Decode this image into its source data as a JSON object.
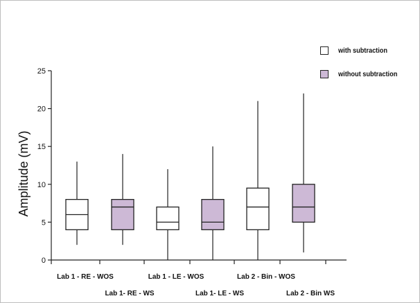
{
  "chart_data": {
    "type": "box",
    "ylabel": "Amplitude (mV)",
    "ylim": [
      0,
      25
    ],
    "yticks": [
      0,
      5,
      10,
      15,
      20,
      25
    ],
    "categories": [
      "Lab 1 - RE - WOS",
      "Lab 1- RE - WS",
      "Lab 1 - LE - WOS",
      "Lab 1- LE - WS",
      "Lab 2 - Bin - WOS",
      "Lab 2 - Bin WS"
    ],
    "series": [
      {
        "name": "with subtraction",
        "color": "#ffffff",
        "boxes": [
          {
            "category": "Lab 1 - RE - WOS",
            "min": 2,
            "q1": 4,
            "median": 6,
            "q3": 8,
            "max": 13
          },
          {
            "category": "Lab 1 - LE - WOS",
            "min": 0,
            "q1": 4,
            "median": 5,
            "q3": 7,
            "max": 12
          },
          {
            "category": "Lab 2 - Bin - WOS",
            "min": 0,
            "q1": 4,
            "median": 7,
            "q3": 9.5,
            "max": 21
          }
        ]
      },
      {
        "name": "without subtraction",
        "color": "#cdb9d6",
        "boxes": [
          {
            "category": "Lab 1- RE - WS",
            "min": 2,
            "q1": 4,
            "median": 7,
            "q3": 8,
            "max": 14
          },
          {
            "category": "Lab 1- LE - WS",
            "min": 0,
            "q1": 4,
            "median": 5,
            "q3": 8,
            "max": 15
          },
          {
            "category": "Lab 2 - Bin WS",
            "min": 1,
            "q1": 5,
            "median": 7,
            "q3": 10,
            "max": 22
          }
        ]
      }
    ],
    "legend": {
      "position": "top-right",
      "items": [
        "with subtraction",
        "without subtraction"
      ]
    },
    "grid": false
  }
}
